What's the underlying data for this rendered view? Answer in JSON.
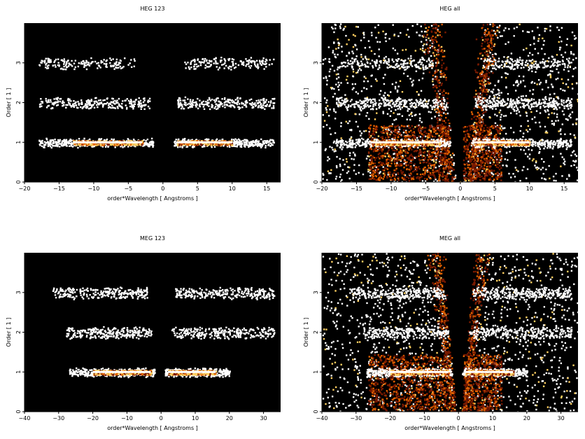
{
  "chart_data": [
    {
      "type": "heatmap",
      "title": "HEG 123",
      "xlabel": "order*Wavelength [ Angstroms ]",
      "ylabel": "Order [ 1 ]",
      "xlim": [
        -20,
        17
      ],
      "ylim": [
        0,
        4
      ],
      "xticks": [
        -20,
        -15,
        -10,
        -5,
        0,
        5,
        10,
        15
      ],
      "yticks": [
        0,
        1,
        2,
        3
      ],
      "background": "#000000",
      "bands": [
        {
          "order": 1,
          "x_ranges": [
            [
              -18,
              -1.5
            ],
            [
              1.5,
              16
            ]
          ],
          "peak_ranges": [
            [
              -13,
              -3
            ],
            [
              2,
              10
            ]
          ],
          "intensity": "high"
        },
        {
          "order": 2,
          "x_ranges": [
            [
              -18,
              -2
            ],
            [
              2,
              16
            ]
          ],
          "intensity": "medium"
        },
        {
          "order": 3,
          "x_ranges": [
            [
              -18,
              -4
            ],
            [
              3,
              16
            ]
          ],
          "intensity": "low"
        }
      ]
    },
    {
      "type": "heatmap",
      "title": "HEG all",
      "xlabel": "order*Wavelength [ Angstroms ]",
      "ylabel": "Order [ 1 ]",
      "xlim": [
        -20,
        17
      ],
      "ylim": [
        0,
        4
      ],
      "xticks": [
        -20,
        -15,
        -10,
        -5,
        0,
        5,
        10,
        15
      ],
      "yticks": [
        0,
        1,
        2,
        3
      ],
      "background": "#000000",
      "bands": [
        {
          "order": 1,
          "x_ranges": [
            [
              -18,
              -1.5
            ],
            [
              1.5,
              16
            ]
          ],
          "peak_ranges": [
            [
              -13,
              -3
            ],
            [
              2,
              10
            ]
          ],
          "intensity": "high"
        },
        {
          "order": 2,
          "x_ranges": [
            [
              -18,
              -2
            ],
            [
              2,
              16
            ]
          ],
          "intensity": "medium"
        },
        {
          "order": 3,
          "x_ranges": [
            [
              -18,
              -4
            ],
            [
              3,
              16
            ]
          ],
          "intensity": "low"
        }
      ]
    },
    {
      "type": "heatmap",
      "title": "MEG 123",
      "xlabel": "order*Wavelength [ Angstroms ]",
      "ylabel": "Order [ 1 ]",
      "xlim": [
        -40,
        35
      ],
      "ylim": [
        0,
        4
      ],
      "xticks": [
        -40,
        -30,
        -20,
        -10,
        0,
        10,
        20,
        30
      ],
      "yticks": [
        0,
        1,
        2,
        3
      ],
      "background": "#000000",
      "bands": [
        {
          "order": 1,
          "x_ranges": [
            [
              -27,
              -2
            ],
            [
              1,
              20
            ]
          ],
          "peak_ranges": [
            [
              -20,
              -3
            ],
            [
              2,
              16
            ]
          ],
          "intensity": "high"
        },
        {
          "order": 2,
          "x_ranges": [
            [
              -28,
              -3
            ],
            [
              3,
              33
            ]
          ],
          "intensity": "medium"
        },
        {
          "order": 3,
          "x_ranges": [
            [
              -32,
              -4
            ],
            [
              4,
              33
            ]
          ],
          "intensity": "medium"
        }
      ]
    },
    {
      "type": "heatmap",
      "title": "MEG all",
      "xlabel": "order*Wavelength [ Angstroms ]",
      "ylabel": "Order [ 1 ]",
      "xlim": [
        -40,
        35
      ],
      "ylim": [
        0,
        4
      ],
      "xticks": [
        -40,
        -30,
        -20,
        -10,
        0,
        10,
        20,
        30
      ],
      "yticks": [
        0,
        1,
        2,
        3
      ],
      "background": "#000000",
      "bands": [
        {
          "order": 1,
          "x_ranges": [
            [
              -27,
              -2
            ],
            [
              1,
              20
            ]
          ],
          "peak_ranges": [
            [
              -20,
              -3
            ],
            [
              2,
              16
            ]
          ],
          "intensity": "high"
        },
        {
          "order": 2,
          "x_ranges": [
            [
              -28,
              -3
            ],
            [
              3,
              33
            ]
          ],
          "intensity": "medium"
        },
        {
          "order": 3,
          "x_ranges": [
            [
              -32,
              -4
            ],
            [
              4,
              33
            ]
          ],
          "intensity": "medium"
        }
      ]
    }
  ],
  "colors": {
    "background": "#000000",
    "low": "#7a1a00",
    "mid": "#e06000",
    "high": "#ffd060",
    "peak": "#ffffff"
  }
}
